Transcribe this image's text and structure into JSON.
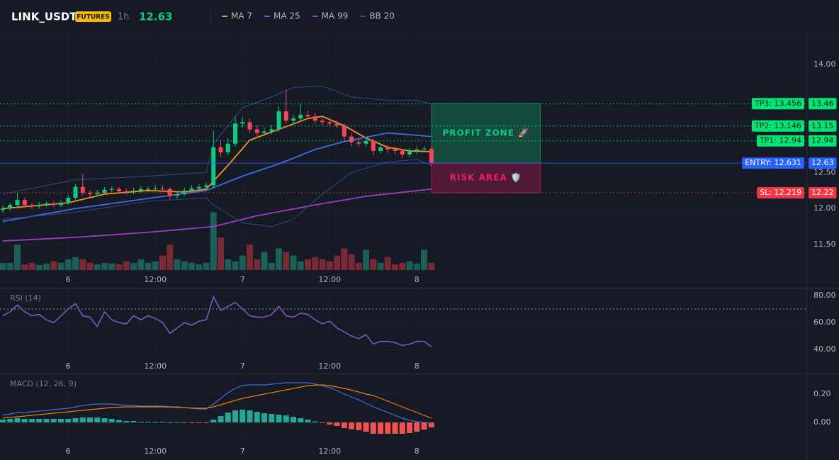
{
  "header": {
    "symbol": "LINK_USDT",
    "badge": "FUTURES",
    "interval": "1h",
    "price": 12.63
  },
  "chart_data": [
    {
      "type": "candlestick",
      "xlim": [
        -0.39,
        110.63
      ],
      "ylim": [
        11.146,
        14.433
      ],
      "xticks": [
        {
          "value": 9,
          "label": "6"
        },
        {
          "value": 21,
          "label": "12:00"
        },
        {
          "value": 33,
          "label": "7"
        },
        {
          "value": 45,
          "label": "12:00"
        },
        {
          "value": 57,
          "label": "8"
        }
      ],
      "yticks": [
        {
          "value": 11.5,
          "label": "11.50"
        },
        {
          "value": 12,
          "label": "12.00"
        },
        {
          "value": 12.5,
          "label": "12.50"
        },
        {
          "value": 14,
          "label": "14.00"
        }
      ],
      "grid": true,
      "up_color": "#0ecb81",
      "down_color": "#f6465d",
      "volume_up_color": "#1c5f57",
      "volume_down_color": "#7a2a36",
      "open": [
        11.98,
        12.0,
        12.05,
        12.12,
        12.05,
        12.03,
        12.05,
        12.07,
        12.05,
        12.08,
        12.15,
        12.3,
        12.22,
        12.2,
        12.22,
        12.26,
        12.27,
        12.24,
        12.23,
        12.25,
        12.27,
        12.27,
        12.28,
        12.27,
        12.18,
        12.2,
        12.25,
        12.28,
        12.3,
        12.32,
        12.85,
        12.78,
        12.9,
        13.18,
        13.2,
        13.1,
        13.05,
        13.07,
        13.1,
        13.35,
        13.22,
        13.25,
        13.3,
        13.28,
        13.22,
        13.2,
        13.18,
        13.15,
        13.0,
        12.92,
        12.9,
        12.94,
        12.8,
        12.85,
        12.82,
        12.8,
        12.75,
        12.8,
        12.82,
        12.83
      ],
      "high": [
        12.04,
        12.08,
        12.22,
        12.15,
        12.08,
        12.09,
        12.1,
        12.1,
        12.11,
        12.19,
        12.34,
        12.48,
        12.25,
        12.26,
        12.3,
        12.31,
        12.3,
        12.28,
        12.29,
        12.31,
        12.31,
        12.32,
        12.32,
        12.3,
        12.24,
        12.29,
        12.32,
        12.34,
        12.36,
        13.08,
        12.95,
        12.98,
        13.28,
        13.27,
        13.25,
        13.16,
        13.12,
        13.16,
        13.42,
        13.65,
        13.3,
        13.45,
        13.36,
        13.33,
        13.26,
        13.24,
        13.22,
        13.18,
        13.05,
        12.97,
        12.99,
        12.97,
        12.9,
        12.88,
        12.86,
        12.83,
        12.84,
        12.86,
        12.87,
        12.86
      ],
      "low": [
        11.94,
        11.97,
        12.02,
        12.01,
        11.99,
        12.0,
        12.02,
        12.02,
        12.02,
        12.05,
        12.12,
        12.18,
        12.16,
        12.17,
        12.19,
        12.23,
        12.21,
        12.19,
        12.2,
        12.22,
        12.23,
        12.24,
        12.23,
        12.12,
        12.14,
        12.17,
        12.22,
        12.25,
        12.27,
        12.28,
        12.72,
        12.74,
        12.86,
        13.12,
        13.05,
        13.0,
        13.01,
        13.03,
        13.06,
        13.18,
        13.17,
        13.2,
        13.24,
        13.18,
        13.16,
        13.14,
        13.11,
        12.95,
        12.87,
        12.85,
        12.86,
        12.74,
        12.76,
        12.77,
        12.75,
        12.7,
        12.71,
        12.76,
        12.78,
        12.58
      ],
      "close": [
        12.0,
        12.05,
        12.12,
        12.05,
        12.03,
        12.05,
        12.07,
        12.05,
        12.08,
        12.15,
        12.3,
        12.22,
        12.2,
        12.22,
        12.26,
        12.27,
        12.24,
        12.23,
        12.25,
        12.27,
        12.27,
        12.28,
        12.27,
        12.18,
        12.2,
        12.25,
        12.28,
        12.3,
        12.32,
        12.85,
        12.78,
        12.9,
        13.18,
        13.2,
        13.1,
        13.05,
        13.07,
        13.1,
        13.35,
        13.22,
        13.25,
        13.3,
        13.28,
        13.22,
        13.2,
        13.18,
        13.15,
        13.0,
        12.92,
        12.9,
        12.94,
        12.8,
        12.85,
        12.82,
        12.8,
        12.75,
        12.8,
        12.82,
        12.83,
        12.63
      ],
      "volume": [
        10,
        10,
        35,
        8,
        10,
        7,
        9,
        12,
        10,
        15,
        18,
        15,
        10,
        8,
        10,
        9,
        8,
        12,
        10,
        15,
        10,
        12,
        20,
        35,
        15,
        12,
        10,
        8,
        10,
        80,
        45,
        15,
        12,
        20,
        35,
        15,
        25,
        10,
        30,
        25,
        20,
        12,
        15,
        18,
        15,
        12,
        20,
        30,
        22,
        10,
        28,
        15,
        10,
        18,
        8,
        10,
        12,
        9,
        28,
        10
      ],
      "series": [
        {
          "name": "MA 7",
          "color": "#f7931a",
          "x": [
            0,
            9,
            14,
            20,
            25,
            28,
            31,
            34,
            38,
            42,
            44,
            47,
            50,
            53,
            56,
            59
          ],
          "values": [
            12.0,
            12.08,
            12.2,
            12.25,
            12.23,
            12.27,
            12.6,
            12.95,
            13.1,
            13.25,
            13.28,
            13.15,
            12.98,
            12.85,
            12.8,
            12.79
          ]
        },
        {
          "name": "MA 25",
          "color": "#3d6ee8",
          "x": [
            0,
            10,
            20,
            28,
            33,
            38,
            43,
            47,
            53,
            59
          ],
          "values": [
            11.82,
            12.0,
            12.14,
            12.25,
            12.45,
            12.62,
            12.82,
            12.93,
            13.05,
            13.0
          ]
        },
        {
          "name": "MA 99",
          "color": "#a23ac4",
          "x": [
            0,
            10,
            20,
            29,
            35,
            43,
            50,
            59
          ],
          "values": [
            11.55,
            11.6,
            11.67,
            11.75,
            11.9,
            12.05,
            12.17,
            12.27
          ]
        },
        {
          "name": "BB 20",
          "color": "#2f4a8f",
          "x": [
            0,
            10,
            20,
            28,
            29,
            33,
            37,
            40,
            44,
            48,
            53,
            57,
            59
          ],
          "upper": [
            12.2,
            12.4,
            12.45,
            12.5,
            12.9,
            13.4,
            13.55,
            13.68,
            13.7,
            13.55,
            13.5,
            13.5,
            13.45
          ],
          "lower": [
            11.85,
            11.95,
            12.1,
            12.15,
            12.05,
            11.8,
            11.75,
            11.85,
            12.2,
            12.5,
            12.65,
            12.68,
            12.6
          ]
        }
      ],
      "levels": [
        {
          "value": 13.456,
          "label": "TP3: 13.456",
          "axis_label": "13.46",
          "color": "#00e676",
          "style": "dotted"
        },
        {
          "value": 13.146,
          "label": "TP2: 13.146",
          "axis_label": "13.15",
          "color": "#00e676",
          "style": "dotted"
        },
        {
          "value": 12.94,
          "label": "TP1: 12.94",
          "axis_label": "12.94",
          "color": "#00e676",
          "style": "dotted"
        },
        {
          "value": 12.631,
          "label": "ENTRY: 12.631",
          "axis_label": "12.63",
          "color": "#2962ff",
          "style": "solid"
        },
        {
          "value": 12.219,
          "label": "SL: 12.219",
          "axis_label": "12.22",
          "color": "#f23645",
          "style": "dotted"
        }
      ],
      "zones": [
        {
          "label": "PROFIT ZONE 🚀",
          "from": 12.631,
          "to": 13.456,
          "color": "#0ecb81"
        },
        {
          "label": "RISK AREA 🛡️",
          "from": 12.219,
          "to": 12.631,
          "color": "#e91e63"
        }
      ]
    },
    {
      "type": "line",
      "title": "RSI (14)",
      "color": "#7e57c2",
      "xlim": [
        -0.39,
        110.63
      ],
      "ylim": [
        33.7,
        85.3
      ],
      "xticks": [
        {
          "value": 9,
          "label": "6"
        },
        {
          "value": 21,
          "label": "12:00"
        },
        {
          "value": 33,
          "label": "7"
        },
        {
          "value": 45,
          "label": "12:00"
        },
        {
          "value": 57,
          "label": "8"
        }
      ],
      "yticks": [
        {
          "value": 40,
          "label": "40.00"
        },
        {
          "value": 60,
          "label": "60.00"
        },
        {
          "value": 80,
          "label": "80.00"
        }
      ],
      "level": 70,
      "grid": true,
      "values": [
        65,
        68,
        73,
        68,
        65,
        66,
        62,
        60,
        65,
        70,
        74,
        65,
        64,
        57,
        68,
        62,
        60,
        59,
        65,
        62,
        65,
        63,
        60,
        52,
        56,
        60,
        58,
        61,
        62,
        79,
        69,
        72,
        75,
        70,
        65,
        64,
        64,
        66,
        72,
        65,
        64,
        67,
        66,
        62,
        59,
        61,
        56,
        53,
        50,
        48,
        51,
        44,
        46,
        46,
        45,
        43,
        44,
        46,
        46,
        42
      ]
    },
    {
      "type": "macd",
      "title": "MACD (12, 26, 9)",
      "xlim": [
        -0.39,
        110.63
      ],
      "ylim": [
        -0.155,
        0.34
      ],
      "xticks": [
        {
          "value": 9,
          "label": "6"
        },
        {
          "value": 21,
          "label": "12:00"
        },
        {
          "value": 33,
          "label": "7"
        },
        {
          "value": 45,
          "label": "12:00"
        },
        {
          "value": 57,
          "label": "8"
        }
      ],
      "yticks": [
        {
          "value": 0,
          "label": "0.00"
        },
        {
          "value": 0.2,
          "label": "0.20"
        }
      ],
      "grid": true,
      "up_color": "#26a69a",
      "down_color": "#ef5350",
      "series": [
        {
          "color": "#3d6ee8",
          "values": [
            0.05,
            0.06,
            0.07,
            0.07,
            0.075,
            0.08,
            0.085,
            0.09,
            0.095,
            0.1,
            0.11,
            0.12,
            0.125,
            0.13,
            0.13,
            0.13,
            0.125,
            0.12,
            0.12,
            0.115,
            0.115,
            0.115,
            0.115,
            0.11,
            0.11,
            0.105,
            0.1,
            0.095,
            0.095,
            0.13,
            0.17,
            0.21,
            0.24,
            0.26,
            0.265,
            0.265,
            0.265,
            0.27,
            0.275,
            0.28,
            0.28,
            0.28,
            0.28,
            0.27,
            0.26,
            0.245,
            0.225,
            0.2,
            0.18,
            0.16,
            0.135,
            0.11,
            0.09,
            0.07,
            0.05,
            0.03,
            0.015,
            0.005,
            0,
            -0.005
          ]
        },
        {
          "color": "#f57c00",
          "values": [
            0.03,
            0.035,
            0.04,
            0.045,
            0.05,
            0.055,
            0.06,
            0.065,
            0.07,
            0.075,
            0.08,
            0.085,
            0.09,
            0.095,
            0.1,
            0.105,
            0.108,
            0.11,
            0.11,
            0.11,
            0.11,
            0.11,
            0.11,
            0.108,
            0.106,
            0.104,
            0.102,
            0.1,
            0.1,
            0.11,
            0.125,
            0.14,
            0.155,
            0.17,
            0.18,
            0.19,
            0.2,
            0.21,
            0.22,
            0.23,
            0.24,
            0.25,
            0.26,
            0.263,
            0.265,
            0.26,
            0.25,
            0.24,
            0.228,
            0.215,
            0.2,
            0.19,
            0.17,
            0.15,
            0.13,
            0.11,
            0.09,
            0.07,
            0.05,
            0.03
          ]
        }
      ],
      "histogram": [
        0.02,
        0.025,
        0.03,
        0.025,
        0.025,
        0.025,
        0.025,
        0.025,
        0.025,
        0.025,
        0.03,
        0.035,
        0.035,
        0.035,
        0.03,
        0.025,
        0.017,
        0.01,
        0.01,
        0.005,
        0.005,
        0.005,
        0.005,
        0.002,
        0.004,
        0.001,
        -0.002,
        -0.005,
        -0.005,
        0.02,
        0.045,
        0.07,
        0.085,
        0.09,
        0.085,
        0.075,
        0.065,
        0.06,
        0.055,
        0.05,
        0.04,
        0.03,
        0.02,
        0.007,
        -0.005,
        -0.015,
        -0.025,
        -0.04,
        -0.048,
        -0.055,
        -0.065,
        -0.08,
        -0.08,
        -0.08,
        -0.08,
        -0.08,
        -0.075,
        -0.065,
        -0.05,
        -0.035
      ]
    }
  ]
}
